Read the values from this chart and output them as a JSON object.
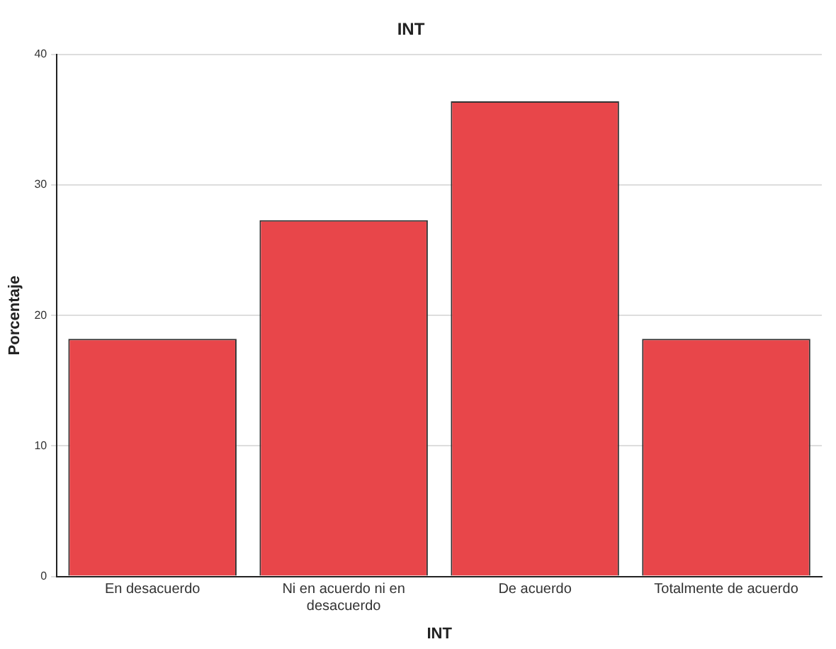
{
  "chart_data": {
    "type": "bar",
    "title": "INT",
    "xlabel": "INT",
    "ylabel": "Porcentaje",
    "categories": [
      "En desacuerdo",
      "Ni en acuerdo ni en desacuerdo",
      "De acuerdo",
      "Totalmente de acuerdo"
    ],
    "values": [
      18.2,
      27.3,
      36.4,
      18.2
    ],
    "color": "#e8464a",
    "ylim": [
      0,
      40
    ],
    "yticks": [
      0,
      10,
      20,
      30,
      40
    ],
    "grid": "y",
    "legend": false
  }
}
